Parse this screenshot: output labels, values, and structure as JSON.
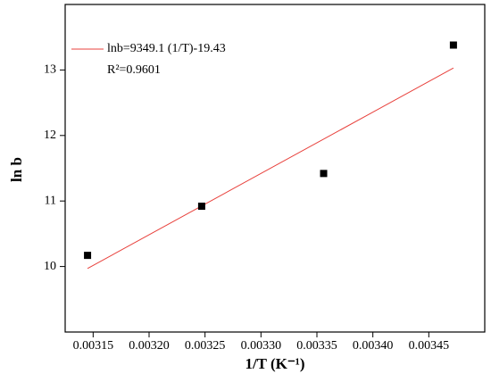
{
  "chart_data": {
    "type": "scatter",
    "x_label": "1/T (K⁻¹)",
    "y_label": "ln b",
    "series": [
      {
        "name": "lnb=9349.1 (1/T)-19.43",
        "type": "line",
        "color": "#e8413c",
        "x": [
          0.003145,
          0.003472
        ],
        "values": [
          9.97,
          13.03
        ]
      },
      {
        "type": "scatter",
        "color": "#000000",
        "x": [
          0.003145,
          0.003247,
          0.003356,
          0.003472
        ],
        "values": [
          10.17,
          10.92,
          11.42,
          13.38
        ]
      }
    ],
    "annotation": "R²=0.9601",
    "xlim": [
      0.003125,
      0.0035
    ],
    "ylim": [
      9,
      14
    ],
    "xticks": [
      0.00315,
      {
        "value": 0.0032,
        "label": "0.00320"
      },
      0.00325,
      {
        "value": 0.0033,
        "label": "0.00330"
      },
      0.00335,
      {
        "value": 0.0034,
        "label": "0.00340"
      },
      0.00345
    ],
    "yticks": [
      10,
      11,
      12,
      13
    ],
    "legend": "upper left"
  }
}
